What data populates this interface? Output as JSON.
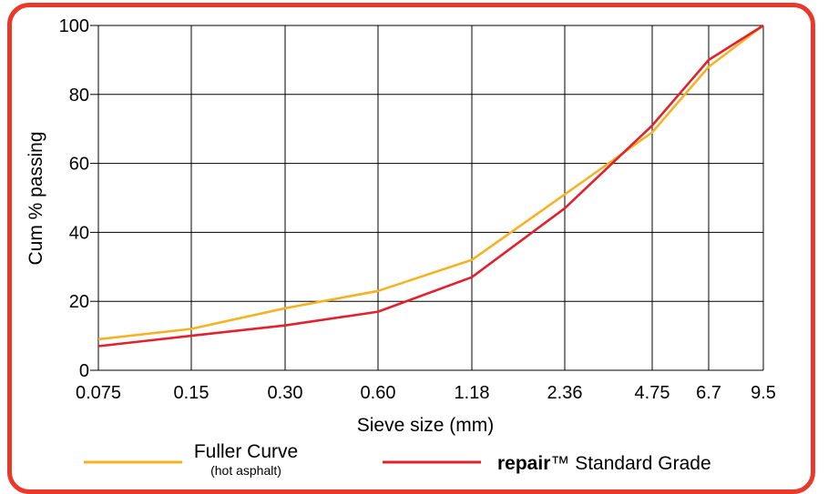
{
  "colors": {
    "frame": "#e8392b",
    "fuller": "#f5b324",
    "repair": "#e0222e",
    "grid": "#000000"
  },
  "legend": {
    "fuller_label": "Fuller Curve",
    "fuller_sub": "(hot asphalt)",
    "repair_brand": "repair",
    "repair_tm": "™",
    "repair_rest": " Standard Grade",
    "placement": "bottom"
  },
  "chart_data": {
    "type": "line",
    "xlabel": "Sieve size (mm)",
    "ylabel": "Cum % passing",
    "categories": [
      "0.075",
      "0.15",
      "0.30",
      "0.60",
      "1.18",
      "2.36",
      "4.75",
      "6.7",
      "9.5"
    ],
    "ylim": [
      0,
      100
    ],
    "yticks": [
      0,
      20,
      40,
      60,
      80,
      100
    ],
    "grid": true,
    "series": [
      {
        "name": "Fuller Curve",
        "color": "#f5b324",
        "values": [
          9,
          12,
          18,
          23,
          32,
          51,
          69,
          88,
          100
        ]
      },
      {
        "name": "repair™ Standard Grade",
        "color": "#e0222e",
        "values": [
          7,
          10,
          13,
          17,
          27,
          47,
          71,
          90,
          100
        ]
      }
    ]
  }
}
